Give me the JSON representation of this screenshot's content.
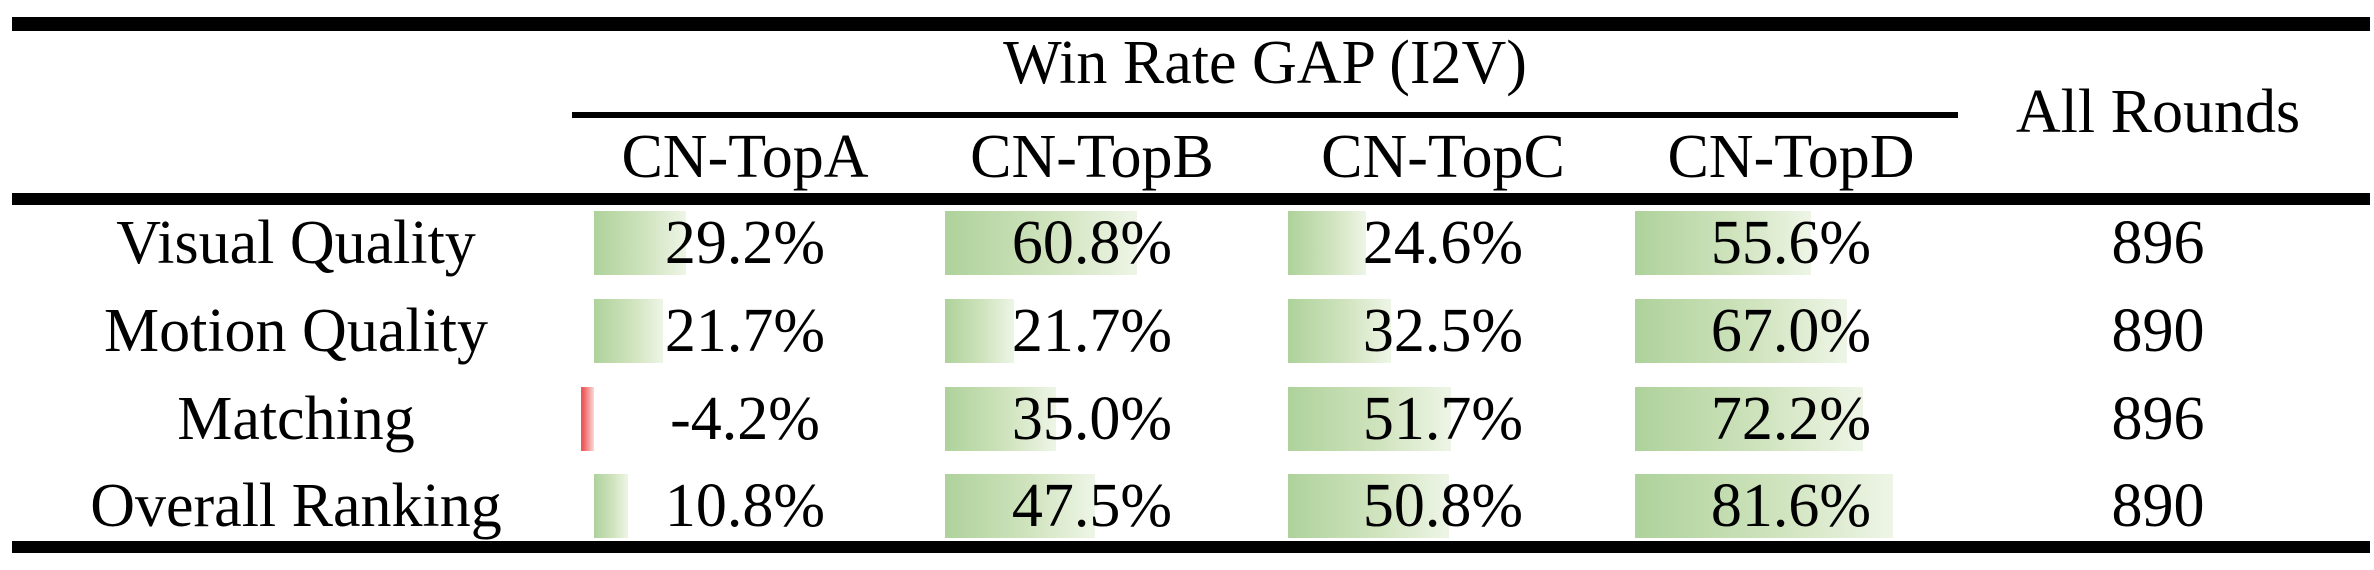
{
  "table": {
    "group_header": "Win Rate GAP (I2V)",
    "all_rounds_header": "All Rounds",
    "columns": [
      "CN-TopA",
      "CN-TopB",
      "CN-TopC",
      "CN-TopD"
    ],
    "rows": [
      {
        "label": "Visual Quality",
        "values": [
          "29.2%",
          "60.8%",
          "24.6%",
          "55.6%"
        ],
        "pcts": [
          29.2,
          60.8,
          24.6,
          55.6
        ],
        "all_rounds": "896"
      },
      {
        "label": "Motion Quality",
        "values": [
          "21.7%",
          "21.7%",
          "32.5%",
          "67.0%"
        ],
        "pcts": [
          21.7,
          21.7,
          32.5,
          67.0
        ],
        "all_rounds": "890"
      },
      {
        "label": "Matching",
        "values": [
          "-4.2%",
          "35.0%",
          "51.7%",
          "72.2%"
        ],
        "pcts": [
          -4.2,
          35.0,
          51.7,
          72.2
        ],
        "all_rounds": "896"
      },
      {
        "label": "Overall Ranking",
        "values": [
          "10.8%",
          "47.5%",
          "50.8%",
          "81.6%"
        ],
        "pcts": [
          10.8,
          47.5,
          50.8,
          81.6
        ],
        "all_rounds": "890"
      }
    ],
    "colors": {
      "bar_positive_start": "#aed29b",
      "bar_positive_end": "#eef5e6",
      "bar_negative": "#ee5858",
      "rule": "#000000"
    }
  },
  "chart_data": {
    "type": "table",
    "title": "Win Rate GAP (I2V)",
    "columns": [
      "CN-TopA",
      "CN-TopB",
      "CN-TopC",
      "CN-TopD",
      "All Rounds"
    ],
    "categories": [
      "Visual Quality",
      "Motion Quality",
      "Matching",
      "Overall Ranking"
    ],
    "series": [
      {
        "name": "CN-TopA",
        "values": [
          29.2,
          21.7,
          -4.2,
          10.8
        ]
      },
      {
        "name": "CN-TopB",
        "values": [
          60.8,
          21.7,
          35.0,
          47.5
        ]
      },
      {
        "name": "CN-TopC",
        "values": [
          24.6,
          32.5,
          51.7,
          50.8
        ]
      },
      {
        "name": "CN-TopD",
        "values": [
          55.6,
          67.0,
          72.2,
          81.6
        ]
      },
      {
        "name": "All Rounds",
        "values": [
          896,
          890,
          896,
          890
        ]
      }
    ],
    "value_unit": "%"
  }
}
